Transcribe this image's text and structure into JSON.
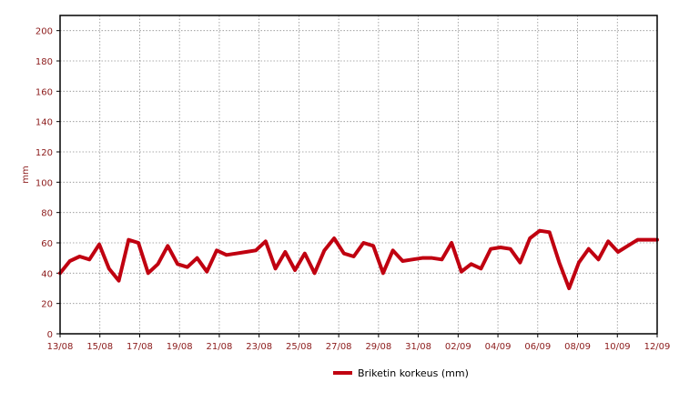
{
  "chart_data": {
    "type": "line",
    "title": "",
    "xlabel": "",
    "ylabel": "mm",
    "ylim": [
      0,
      210
    ],
    "y_ticks": [
      0,
      20,
      40,
      60,
      80,
      100,
      120,
      140,
      160,
      180,
      200
    ],
    "x_tick_labels": [
      "13/08",
      "15/08",
      "17/08",
      "19/08",
      "21/08",
      "23/08",
      "25/08",
      "27/08",
      "29/08",
      "31/08",
      "02/09",
      "04/09",
      "06/09",
      "08/09",
      "10/09",
      "12/09"
    ],
    "grid": true,
    "legend_position": "bottom-center",
    "series": [
      {
        "name": "Briketin korkeus (mm)",
        "color": "#c00010",
        "values": [
          40,
          48,
          51,
          49,
          59,
          43,
          35,
          62,
          60,
          40,
          46,
          58,
          46,
          44,
          50,
          41,
          55,
          52,
          53,
          54,
          55,
          61,
          43,
          54,
          42,
          53,
          40,
          55,
          63,
          53,
          51,
          60,
          58,
          40,
          55,
          48,
          49,
          50,
          50,
          49,
          60,
          41,
          46,
          43,
          56,
          57,
          56,
          47,
          63,
          68,
          67,
          47,
          30,
          47,
          56,
          49,
          61,
          54,
          58,
          62,
          62,
          62
        ]
      }
    ]
  }
}
